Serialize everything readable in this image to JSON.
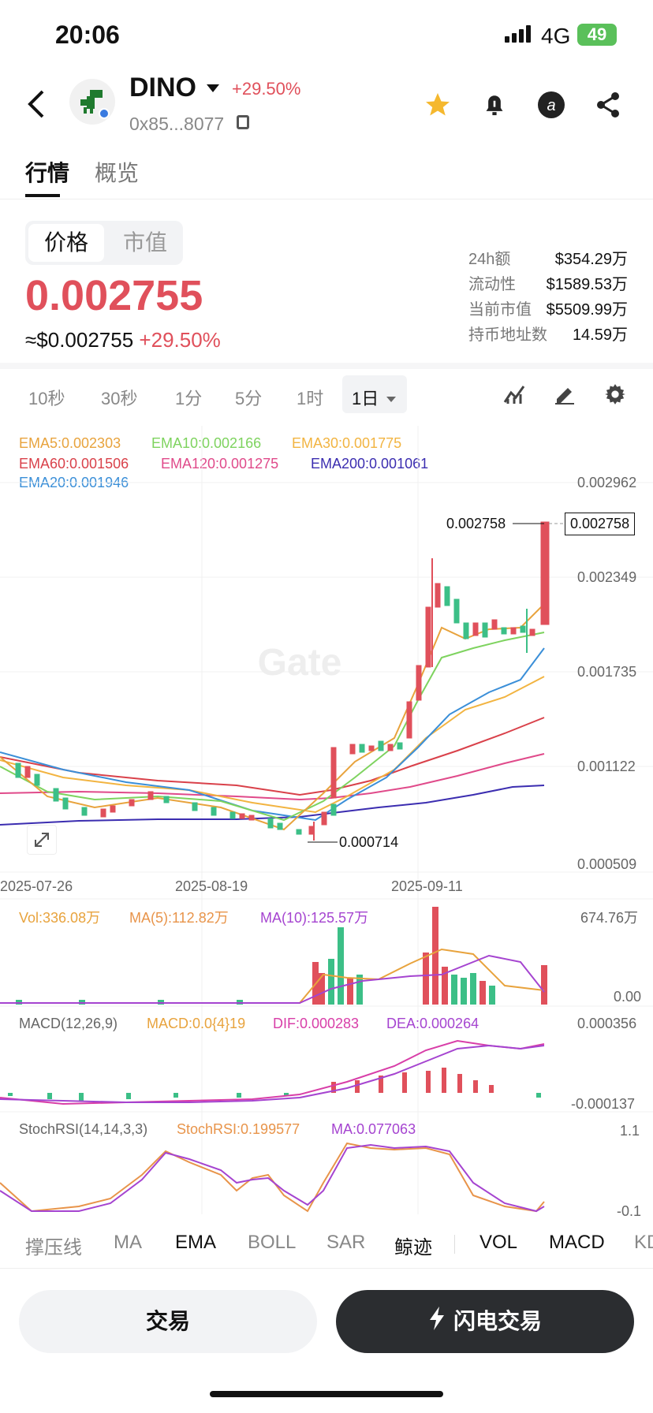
{
  "status": {
    "time": "20:06",
    "network": "4G",
    "battery": "49"
  },
  "header": {
    "title": "DINO",
    "change": "+29.50%",
    "address": "0x85...8077"
  },
  "tabs": [
    "行情",
    "概览"
  ],
  "segment": [
    "价格",
    "市值"
  ],
  "price": {
    "main": "0.002755",
    "usd": "≈$0.002755",
    "usd_change": "+29.50%"
  },
  "stats": [
    {
      "label": "24h额",
      "value": "$354.29万"
    },
    {
      "label": "流动性",
      "value": "$1589.53万"
    },
    {
      "label": "当前市值",
      "value": "$5509.99万"
    },
    {
      "label": "持币地址数",
      "value": "14.59万"
    }
  ],
  "timeframes": [
    "10秒",
    "30秒",
    "1分",
    "5分",
    "1时",
    "1日"
  ],
  "ema_labels": [
    {
      "text": "EMA5:0.002303",
      "color": "#e8a33d"
    },
    {
      "text": "EMA10:0.002166",
      "color": "#7ed35f"
    },
    {
      "text": "EMA30:0.001775",
      "color": "#f2b441"
    },
    {
      "text": "EMA60:0.001506",
      "color": "#d9414a"
    },
    {
      "text": "EMA120:0.001275",
      "color": "#e04a8a"
    },
    {
      "text": "EMA200:0.001061",
      "color": "#3b2db0"
    },
    {
      "text": "EMA20:0.001946",
      "color": "#3b8fd8"
    }
  ],
  "price_axis": [
    "0.002962",
    "0.002349",
    "0.001735",
    "0.001122",
    "0.000509"
  ],
  "last_price_tag": "0.002758",
  "high_label": "0.002758",
  "low_label": "0.000714",
  "dates": [
    "2025-07-26",
    "2025-08-19",
    "2025-09-11"
  ],
  "volume": {
    "label": "Vol:336.08万",
    "ma5": "MA(5):112.82万",
    "ma10": "MA(10):125.57万",
    "max": "674.76万",
    "min": "0.00"
  },
  "macd": {
    "label": "MACD(12,26,9)",
    "macd": "MACD:0.0{4}19",
    "dif": "DIF:0.000283",
    "dea": "DEA:0.000264",
    "top": "0.000356",
    "bottom": "-0.000137"
  },
  "stoch": {
    "label": "StochRSI(14,14,3,3)",
    "value": "StochRSI:0.199577",
    "ma": "MA:0.077063",
    "top": "1.1",
    "bottom": "-0.1"
  },
  "indicator_tabs": [
    "撑压线",
    "MA",
    "EMA",
    "BOLL",
    "SAR",
    "鲸迹",
    "VOL",
    "MACD",
    "KD"
  ],
  "buttons": {
    "trade": "交易",
    "flash": "闪电交易"
  },
  "watermark": "Gate",
  "colors": {
    "up": "#e0505b",
    "down": "#3cbf87"
  }
}
